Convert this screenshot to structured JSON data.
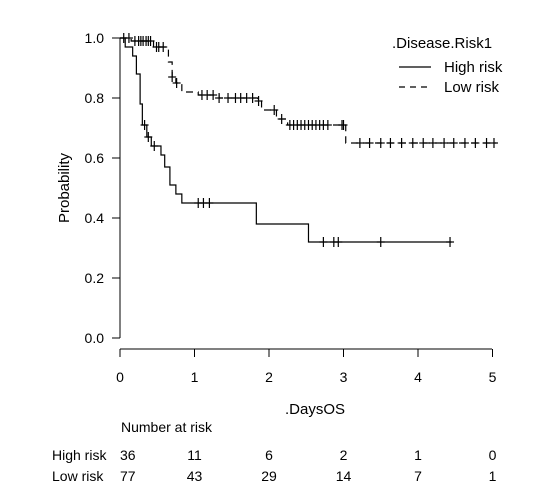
{
  "chart_data": {
    "type": "line",
    "subtype": "kaplan-meier",
    "xlabel": ".DaysOS",
    "ylabel": "Probability",
    "xlim": [
      0,
      5.3
    ],
    "ylim": [
      -0.02,
      1.03
    ],
    "xticks": [
      "0",
      "1",
      "2",
      "3",
      "4",
      "5"
    ],
    "yticks": [
      "0.0",
      "0.2",
      "0.4",
      "0.6",
      "0.8",
      "1.0"
    ],
    "grid": false,
    "legend": {
      "title": ".Disease.Risk1",
      "position": "top-right"
    },
    "series": [
      {
        "name": "High risk",
        "linestyle": "solid",
        "steps": [
          [
            0,
            1.0
          ],
          [
            0.07,
            0.97
          ],
          [
            0.17,
            0.94
          ],
          [
            0.22,
            0.88
          ],
          [
            0.27,
            0.78
          ],
          [
            0.3,
            0.71
          ],
          [
            0.36,
            0.67
          ],
          [
            0.42,
            0.64
          ],
          [
            0.55,
            0.61
          ],
          [
            0.6,
            0.57
          ],
          [
            0.67,
            0.51
          ],
          [
            0.75,
            0.48
          ],
          [
            0.83,
            0.45
          ],
          [
            1.83,
            0.38
          ],
          [
            2.53,
            0.32
          ],
          [
            4.45,
            0.32
          ]
        ],
        "censored": [
          0.33,
          0.38,
          0.46,
          1.05,
          1.12,
          1.2,
          2.73,
          2.87,
          2.93,
          3.5,
          4.43
        ]
      },
      {
        "name": "Low risk",
        "linestyle": "dashed",
        "steps": [
          [
            0,
            1.0
          ],
          [
            0.15,
            0.99
          ],
          [
            0.45,
            0.97
          ],
          [
            0.65,
            0.92
          ],
          [
            0.7,
            0.87
          ],
          [
            0.75,
            0.85
          ],
          [
            0.83,
            0.82
          ],
          [
            1.05,
            0.81
          ],
          [
            1.33,
            0.8
          ],
          [
            1.85,
            0.79
          ],
          [
            1.9,
            0.76
          ],
          [
            2.1,
            0.73
          ],
          [
            2.25,
            0.71
          ],
          [
            3.03,
            0.65
          ],
          [
            5.05,
            0.65
          ]
        ],
        "censored": [
          0.05,
          0.12,
          0.2,
          0.25,
          0.28,
          0.31,
          0.35,
          0.38,
          0.41,
          0.49,
          0.52,
          0.58,
          0.7,
          0.76,
          1.1,
          1.17,
          1.25,
          1.33,
          1.45,
          1.55,
          1.62,
          1.7,
          1.78,
          1.86,
          2.07,
          2.17,
          2.28,
          2.33,
          2.38,
          2.43,
          2.48,
          2.53,
          2.58,
          2.63,
          2.68,
          2.73,
          2.79,
          2.98,
          3.0,
          3.22,
          3.35,
          3.5,
          3.63,
          3.78,
          3.93,
          4.07,
          4.2,
          4.35,
          4.48,
          4.63,
          4.77,
          4.92,
          5.02
        ]
      }
    ]
  },
  "risk_table": {
    "title": "Number at risk",
    "times": [
      0,
      1,
      2,
      3,
      4,
      5
    ],
    "rows": [
      {
        "label": "High risk",
        "counts": [
          "36",
          "11",
          "6",
          "2",
          "1",
          "0"
        ]
      },
      {
        "label": "Low risk",
        "counts": [
          "77",
          "43",
          "29",
          "14",
          "7",
          "1"
        ]
      }
    ]
  }
}
